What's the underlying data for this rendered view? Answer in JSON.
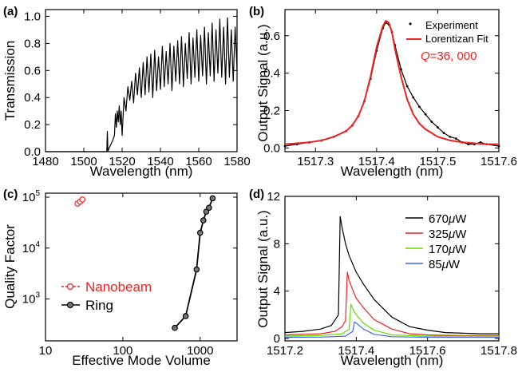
{
  "panels": [
    {
      "label": "(a)",
      "chart_data": {
        "type": "line",
        "title": "",
        "xlabel": "Wavelength (nm)",
        "ylabel": "Transmission",
        "xlim": [
          1480,
          1580
        ],
        "ylim": [
          0,
          1.05
        ],
        "xticks": [
          1480,
          1500,
          1520,
          1540,
          1560,
          1580
        ],
        "yticks": [
          0.0,
          0.2,
          0.4,
          0.6,
          0.8,
          1.0
        ],
        "xtick_labels": [
          "1480",
          "1500",
          "1520",
          "1540",
          "1560",
          "1580"
        ],
        "ytick_labels": [
          "0.0",
          "0.2",
          "0.4",
          "0.6",
          "0.8",
          "1.0"
        ],
        "series": [
          {
            "name": "Transmission",
            "color": "#000000",
            "x": [
              1480,
              1510,
              1511,
              1512,
              1512.3,
              1512.6,
              1513,
              1514,
              1515,
              1516,
              1516.5,
              1517,
              1517.5,
              1518,
              1518.5,
              1519,
              1519.5,
              1520,
              1521,
              1522,
              1523,
              1524,
              1525,
              1526,
              1527,
              1528,
              1529,
              1530,
              1531,
              1532,
              1533,
              1534,
              1535,
              1536,
              1537,
              1538,
              1539,
              1540,
              1541,
              1542,
              1543,
              1544,
              1545,
              1546,
              1547,
              1548,
              1549,
              1550,
              1551,
              1552,
              1553,
              1554,
              1555,
              1556,
              1557,
              1558,
              1559,
              1560,
              1561,
              1562,
              1563,
              1564,
              1565,
              1566,
              1567,
              1568,
              1569,
              1570,
              1571,
              1572,
              1573,
              1574,
              1575,
              1576,
              1577,
              1578,
              1579,
              1580
            ],
            "y": [
              0,
              0,
              0,
              0,
              0.15,
              0,
              0.02,
              0.05,
              0.08,
              0.12,
              0.28,
              0.18,
              0.3,
              0.22,
              0.34,
              0.2,
              0.3,
              0.12,
              0.4,
              0.3,
              0.48,
              0.38,
              0.52,
              0.36,
              0.58,
              0.42,
              0.62,
              0.4,
              0.66,
              0.42,
              0.7,
              0.44,
              0.72,
              0.4,
              0.75,
              0.45,
              0.7,
              0.46,
              0.78,
              0.48,
              0.74,
              0.5,
              0.8,
              0.45,
              0.78,
              0.52,
              0.82,
              0.5,
              0.85,
              0.48,
              0.8,
              0.54,
              0.88,
              0.5,
              0.84,
              0.55,
              0.9,
              0.52,
              0.86,
              0.56,
              0.92,
              0.5,
              0.88,
              0.56,
              0.95,
              0.52,
              0.9,
              0.58,
              0.98,
              0.55,
              0.92,
              0.5,
              0.99,
              0.55,
              0.9,
              0.52,
              0.92,
              0.6
            ]
          }
        ]
      }
    },
    {
      "label": "(b)",
      "chart_data": {
        "type": "line",
        "title": "",
        "xlabel": "Wavelength (nm)",
        "ylabel": "Output Signal (a.u.)",
        "xlim": [
          1517.25,
          1517.6
        ],
        "ylim": [
          -0.02,
          0.74
        ],
        "xticks": [
          1517.3,
          1517.4,
          1517.5,
          1517.6
        ],
        "yticks": [
          0.0,
          0.2,
          0.4,
          0.6
        ],
        "xtick_labels": [
          "1517.3",
          "1517.4",
          "1517.5",
          "1517.6"
        ],
        "ytick_labels": [
          "0.0",
          "0.2",
          "0.4",
          "0.6"
        ],
        "annotation": {
          "prefix": "Q",
          "text": "=36, 000"
        },
        "series": [
          {
            "name": "Experiment",
            "color": "#000000",
            "marker": "dot",
            "x": [
              1517.25,
              1517.27,
              1517.29,
              1517.31,
              1517.33,
              1517.35,
              1517.36,
              1517.37,
              1517.38,
              1517.39,
              1517.4,
              1517.41,
              1517.415,
              1517.42,
              1517.425,
              1517.43,
              1517.44,
              1517.45,
              1517.46,
              1517.47,
              1517.48,
              1517.49,
              1517.5,
              1517.51,
              1517.52,
              1517.53,
              1517.54,
              1517.55,
              1517.56,
              1517.57,
              1517.58,
              1517.6
            ],
            "y": [
              0.01,
              0.02,
              0.03,
              0.04,
              0.06,
              0.09,
              0.12,
              0.17,
              0.25,
              0.37,
              0.52,
              0.64,
              0.67,
              0.66,
              0.62,
              0.55,
              0.42,
              0.33,
              0.27,
              0.22,
              0.18,
              0.14,
              0.11,
              0.08,
              0.06,
              0.05,
              0.03,
              0.02,
              0.02,
              0.03,
              0.02,
              0.01
            ]
          },
          {
            "name": "Lorentizan Fit",
            "color": "#ee2222",
            "x": [
              1517.25,
              1517.27,
              1517.29,
              1517.31,
              1517.33,
              1517.35,
              1517.36,
              1517.37,
              1517.38,
              1517.39,
              1517.4,
              1517.41,
              1517.415,
              1517.42,
              1517.425,
              1517.43,
              1517.44,
              1517.45,
              1517.46,
              1517.47,
              1517.48,
              1517.49,
              1517.5,
              1517.52,
              1517.54,
              1517.56,
              1517.58,
              1517.6
            ],
            "y": [
              0.02,
              0.025,
              0.03,
              0.04,
              0.06,
              0.09,
              0.12,
              0.17,
              0.25,
              0.38,
              0.54,
              0.65,
              0.68,
              0.67,
              0.62,
              0.53,
              0.38,
              0.26,
              0.18,
              0.13,
              0.1,
              0.08,
              0.06,
              0.04,
              0.03,
              0.025,
              0.02,
              0.02
            ]
          }
        ]
      }
    },
    {
      "label": "(c)",
      "chart_data": {
        "type": "scatter",
        "title": "",
        "xlabel": "Effective Mode Volume",
        "ylabel": "Quality Factor",
        "xscale": "log",
        "yscale": "log",
        "xlim": [
          10,
          3000
        ],
        "ylim": [
          150,
          120000
        ],
        "xticks": [
          10,
          100,
          1000
        ],
        "xtick_labels": [
          "10",
          "100",
          "1000"
        ],
        "yticks": [
          1000,
          10000,
          100000
        ],
        "ytick_base": "10",
        "ytick_exps": [
          "3",
          "4",
          "5"
        ],
        "series": [
          {
            "name": "Nanobeam",
            "color": "#ee2222",
            "marker": "open-circle",
            "x": [
              26,
              28,
              30
            ],
            "y": [
              75000,
              82000,
              90000
            ]
          },
          {
            "name": "Ring",
            "color": "#000000",
            "marker": "filled-circle",
            "x": [
              470,
              650,
              900,
              1000,
              1100,
              1200,
              1300,
              1450
            ],
            "y": [
              270,
              460,
              3800,
              20000,
              35000,
              52000,
              62000,
              95000
            ]
          }
        ]
      }
    },
    {
      "label": "(d)",
      "chart_data": {
        "type": "line",
        "title": "",
        "xlabel": "Wavelength (nm)",
        "ylabel": "Output Signal (a.u.)",
        "xlim": [
          1517.2,
          1517.8
        ],
        "ylim": [
          -0.2,
          12
        ],
        "xticks": [
          1517.2,
          1517.4,
          1517.6,
          1517.8
        ],
        "xtick_labels": [
          "1517.2",
          "1517.4",
          "1517.6",
          "1517.8"
        ],
        "yticks": [
          0,
          4,
          8,
          12
        ],
        "ytick_labels": [
          "0",
          "4",
          "8",
          "12"
        ],
        "series": [
          {
            "name": "670",
            "unit": "μW",
            "color": "#000000",
            "x": [
              1517.2,
              1517.25,
              1517.3,
              1517.33,
              1517.35,
              1517.355,
              1517.36,
              1517.37,
              1517.38,
              1517.4,
              1517.42,
              1517.45,
              1517.5,
              1517.55,
              1517.6,
              1517.65,
              1517.7,
              1517.75,
              1517.8
            ],
            "y": [
              0.5,
              0.6,
              0.8,
              1.1,
              2.0,
              10.3,
              9.4,
              8.0,
              7.0,
              5.6,
              4.6,
              3.3,
              1.8,
              1.0,
              0.7,
              0.5,
              0.45,
              0.4,
              0.4
            ]
          },
          {
            "name": "325",
            "unit": "μW",
            "color": "#ee2222",
            "x": [
              1517.2,
              1517.3,
              1517.34,
              1517.36,
              1517.37,
              1517.375,
              1517.38,
              1517.39,
              1517.4,
              1517.42,
              1517.45,
              1517.5,
              1517.55,
              1517.6,
              1517.7,
              1517.8
            ],
            "y": [
              0.3,
              0.4,
              0.6,
              1.0,
              1.5,
              5.6,
              4.9,
              4.1,
              3.4,
              2.6,
              1.6,
              0.8,
              0.4,
              0.3,
              0.25,
              0.25
            ]
          },
          {
            "name": "170",
            "unit": "μW",
            "color": "#66dd00",
            "x": [
              1517.2,
              1517.3,
              1517.36,
              1517.38,
              1517.385,
              1517.39,
              1517.4,
              1517.42,
              1517.45,
              1517.5,
              1517.6,
              1517.8
            ],
            "y": [
              0.2,
              0.25,
              0.4,
              0.8,
              2.9,
              2.5,
              2.0,
              1.3,
              0.7,
              0.3,
              0.2,
              0.2
            ]
          },
          {
            "name": "85",
            "unit": "μW",
            "color": "#4466ee",
            "x": [
              1517.2,
              1517.3,
              1517.37,
              1517.39,
              1517.395,
              1517.4,
              1517.42,
              1517.45,
              1517.5,
              1517.6,
              1517.8
            ],
            "y": [
              0.1,
              0.12,
              0.2,
              0.6,
              1.4,
              1.3,
              0.8,
              0.35,
              0.15,
              0.1,
              0.1
            ]
          }
        ]
      }
    }
  ]
}
